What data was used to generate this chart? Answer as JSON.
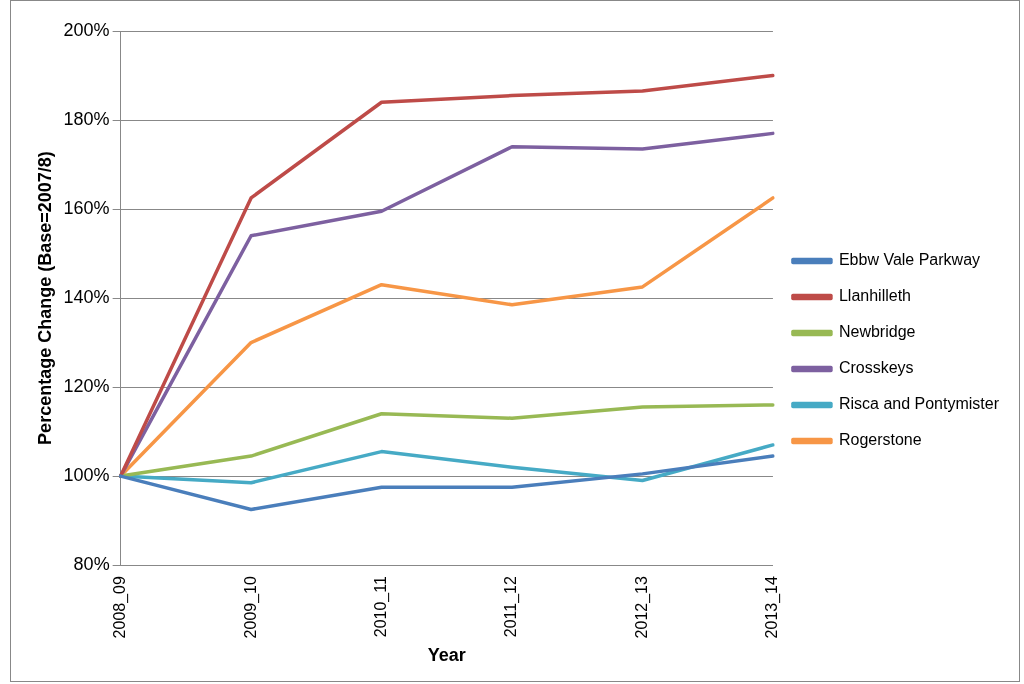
{
  "chart_data": {
    "type": "line",
    "xlabel": "Year",
    "ylabel": "Percentage Change (Base=2007/8)",
    "categories": [
      "2008_09",
      "2009_10",
      "2010_11",
      "2011_12",
      "2012_13",
      "2013_14"
    ],
    "series": [
      {
        "name": "Ebbw Vale Parkway",
        "color": "#4a7ebb",
        "values": [
          100,
          92.5,
          97.5,
          97.5,
          100.5,
          104.5
        ]
      },
      {
        "name": "Llanhilleth",
        "color": "#be4b48",
        "values": [
          100,
          162.5,
          184,
          185.5,
          186.5,
          190
        ]
      },
      {
        "name": "Newbridge",
        "color": "#98b954",
        "values": [
          100,
          104.5,
          114,
          113,
          115.5,
          116
        ]
      },
      {
        "name": "Crosskeys",
        "color": "#7d60a0",
        "values": [
          100,
          154,
          159.5,
          174,
          173.5,
          177
        ]
      },
      {
        "name": "Risca and Pontymister",
        "color": "#46aac5",
        "values": [
          100,
          98.5,
          105.5,
          102,
          99,
          107
        ]
      },
      {
        "name": "Rogerstone",
        "color": "#f79646",
        "values": [
          100,
          130,
          143,
          138.5,
          142.5,
          162.5
        ]
      }
    ],
    "ylim": [
      80,
      200
    ],
    "yticks": [
      {
        "value": 80,
        "label": "80%"
      },
      {
        "value": 100,
        "label": "100%"
      },
      {
        "value": 120,
        "label": "120%"
      },
      {
        "value": 140,
        "label": "140%"
      },
      {
        "value": 160,
        "label": "160%"
      },
      {
        "value": 180,
        "label": "180%"
      },
      {
        "value": 200,
        "label": "200%"
      }
    ],
    "grid": "y",
    "legend": "right",
    "marker": "none",
    "line_style": "solid"
  }
}
